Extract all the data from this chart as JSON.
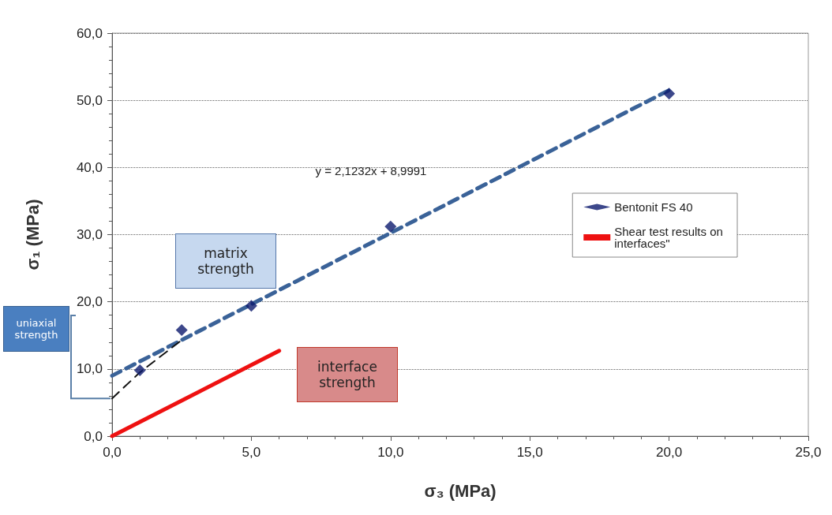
{
  "chart_data": {
    "type": "scatter",
    "xlabel": "σ₃ (MPa)",
    "ylabel": "σ₁ (MPa)",
    "xlim": [
      0,
      25
    ],
    "xticks": [
      {
        "value": 0,
        "label": "0,0"
      },
      {
        "value": 5,
        "label": "5,0"
      },
      {
        "value": 10,
        "label": "10,0"
      },
      {
        "value": 15,
        "label": "15,0"
      },
      {
        "value": 20,
        "label": "20,0"
      },
      {
        "value": 25,
        "label": "25,0"
      }
    ],
    "ylim": [
      0,
      60
    ],
    "yticks": [
      {
        "value": 0,
        "label": "0,0"
      },
      {
        "value": 10,
        "label": "10,0"
      },
      {
        "value": 20,
        "label": "20,0"
      },
      {
        "value": 30,
        "label": "30,0"
      },
      {
        "value": 40,
        "label": "40,0"
      },
      {
        "value": 50,
        "label": "50,0"
      },
      {
        "value": 60,
        "label": "60,0"
      }
    ],
    "grid": "y",
    "legend": "right",
    "series": [
      {
        "type": "line",
        "color": "#3a6298",
        "line_style": "dashed",
        "x": [
          0,
          20
        ],
        "values": [
          9.0,
          51.5
        ]
      },
      {
        "type": "line",
        "color": "#111111",
        "line_style": "dashed",
        "x": [
          0,
          1,
          2.5
        ],
        "values": [
          5.6,
          9.5,
          14.3
        ]
      },
      {
        "type": "line",
        "name": "Shear test results on interfaces\"",
        "color": "#ee1111",
        "line_style": "solid",
        "x": [
          0,
          6
        ],
        "values": [
          0,
          12.7
        ]
      },
      {
        "type": "scatter",
        "name": "Bentonit FS 40",
        "color": "#0d1a6e",
        "marker": "diamond",
        "x": [
          1,
          2.5,
          5,
          10,
          20
        ],
        "values": [
          9.8,
          15.8,
          19.4,
          31.2,
          51
        ]
      }
    ],
    "annotations": [
      "y = 2,1232x + 8,9991",
      "matrix strength",
      "uniaxial strength",
      "interface strength"
    ]
  }
}
